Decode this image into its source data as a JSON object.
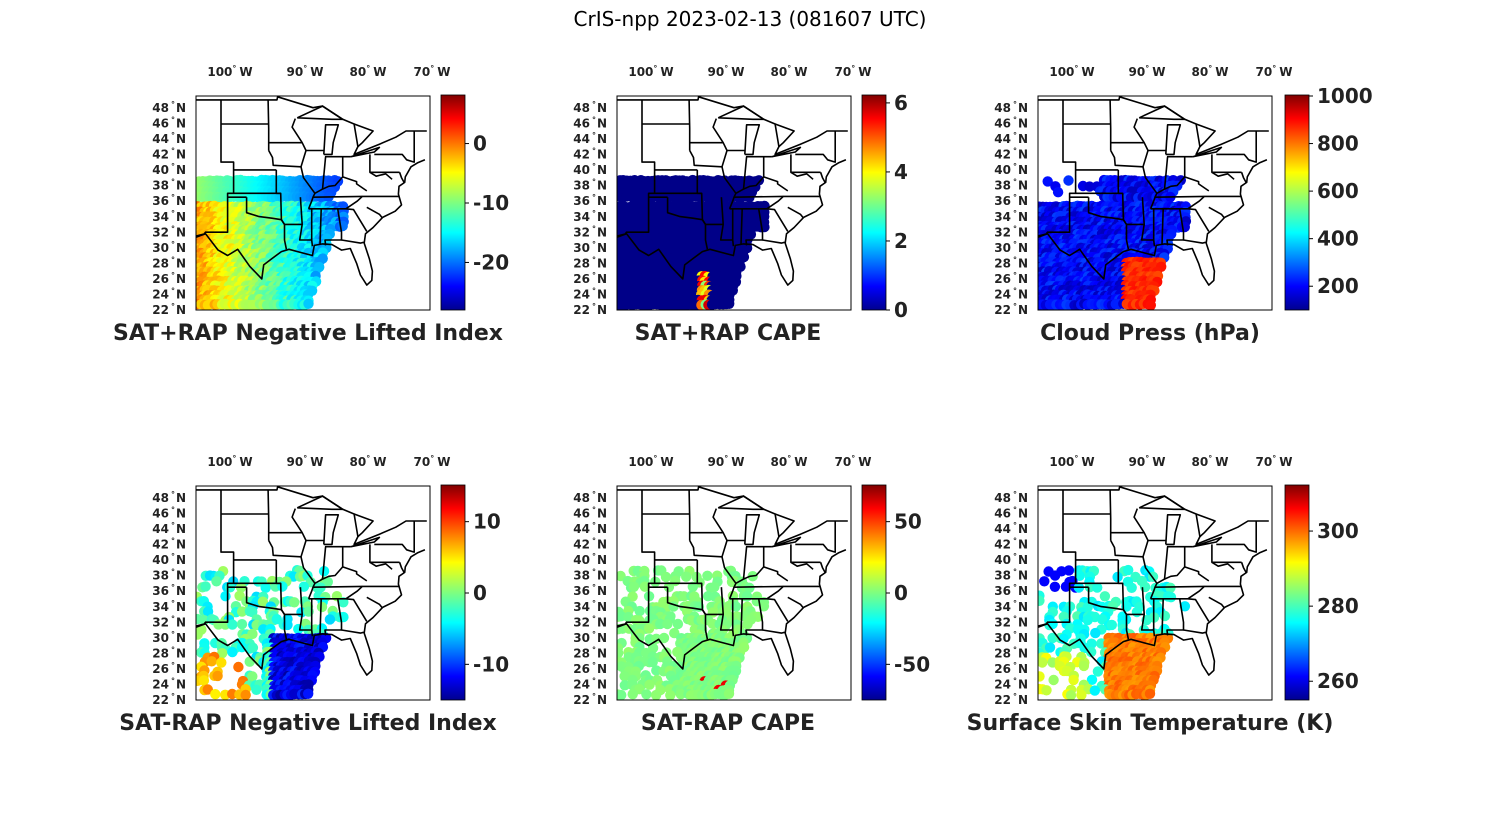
{
  "figure_title": "CrIS-npp 2023-02-13 (081607 UTC)",
  "lon_ticks": [
    "100",
    "90",
    "80",
    "70"
  ],
  "lon_hemisphere": "W",
  "lat_ticks": [
    "22",
    "24",
    "26",
    "28",
    "30",
    "32",
    "34",
    "36",
    "38",
    "40",
    "42",
    "44",
    "46",
    "48"
  ],
  "lat_hemisphere": "N",
  "degree_symbol": "°",
  "map_extent": {
    "lon": [
      -108,
      -71
    ],
    "lat": [
      22,
      49.5
    ]
  },
  "colormap": "jet",
  "chart_data": [
    {
      "type": "map",
      "title": "SAT+RAP Negative Lifted Index",
      "colorbar": {
        "range": [
          -28,
          8
        ],
        "ticks": [
          "0",
          "-10",
          "-20"
        ],
        "tick_values": [
          0,
          -10,
          -20
        ]
      },
      "field_style": "nli_sum"
    },
    {
      "type": "map",
      "title": "SAT+RAP CAPE",
      "colorbar": {
        "range": [
          0,
          6.2
        ],
        "ticks": [
          "6",
          "4",
          "2",
          "0"
        ],
        "tick_values": [
          6,
          4,
          2,
          0
        ]
      },
      "field_style": "cape_sum"
    },
    {
      "type": "map",
      "title": "Cloud Press (hPa)",
      "colorbar": {
        "range": [
          100,
          1000
        ],
        "ticks": [
          "1000",
          "800",
          "600",
          "400",
          "200"
        ],
        "tick_values": [
          1000,
          800,
          600,
          400,
          200
        ]
      },
      "field_style": "cloud_press"
    },
    {
      "type": "map",
      "title": "SAT-RAP Negative Lifted Index",
      "colorbar": {
        "range": [
          -15,
          15
        ],
        "ticks": [
          "10",
          "0",
          "-10"
        ],
        "tick_values": [
          10,
          0,
          -10
        ]
      },
      "field_style": "nli_diff"
    },
    {
      "type": "map",
      "title": "SAT-RAP CAPE",
      "colorbar": {
        "range": [
          -75,
          75
        ],
        "ticks": [
          "50",
          "0",
          "-50"
        ],
        "tick_values": [
          50,
          0,
          -50
        ]
      },
      "field_style": "cape_diff"
    },
    {
      "type": "map",
      "title": "Surface Skin Temperature (K)",
      "colorbar": {
        "range": [
          255,
          312
        ],
        "ticks": [
          "300",
          "280",
          "260"
        ],
        "tick_values": [
          300,
          280,
          260
        ]
      },
      "field_style": "skin_temp"
    }
  ]
}
